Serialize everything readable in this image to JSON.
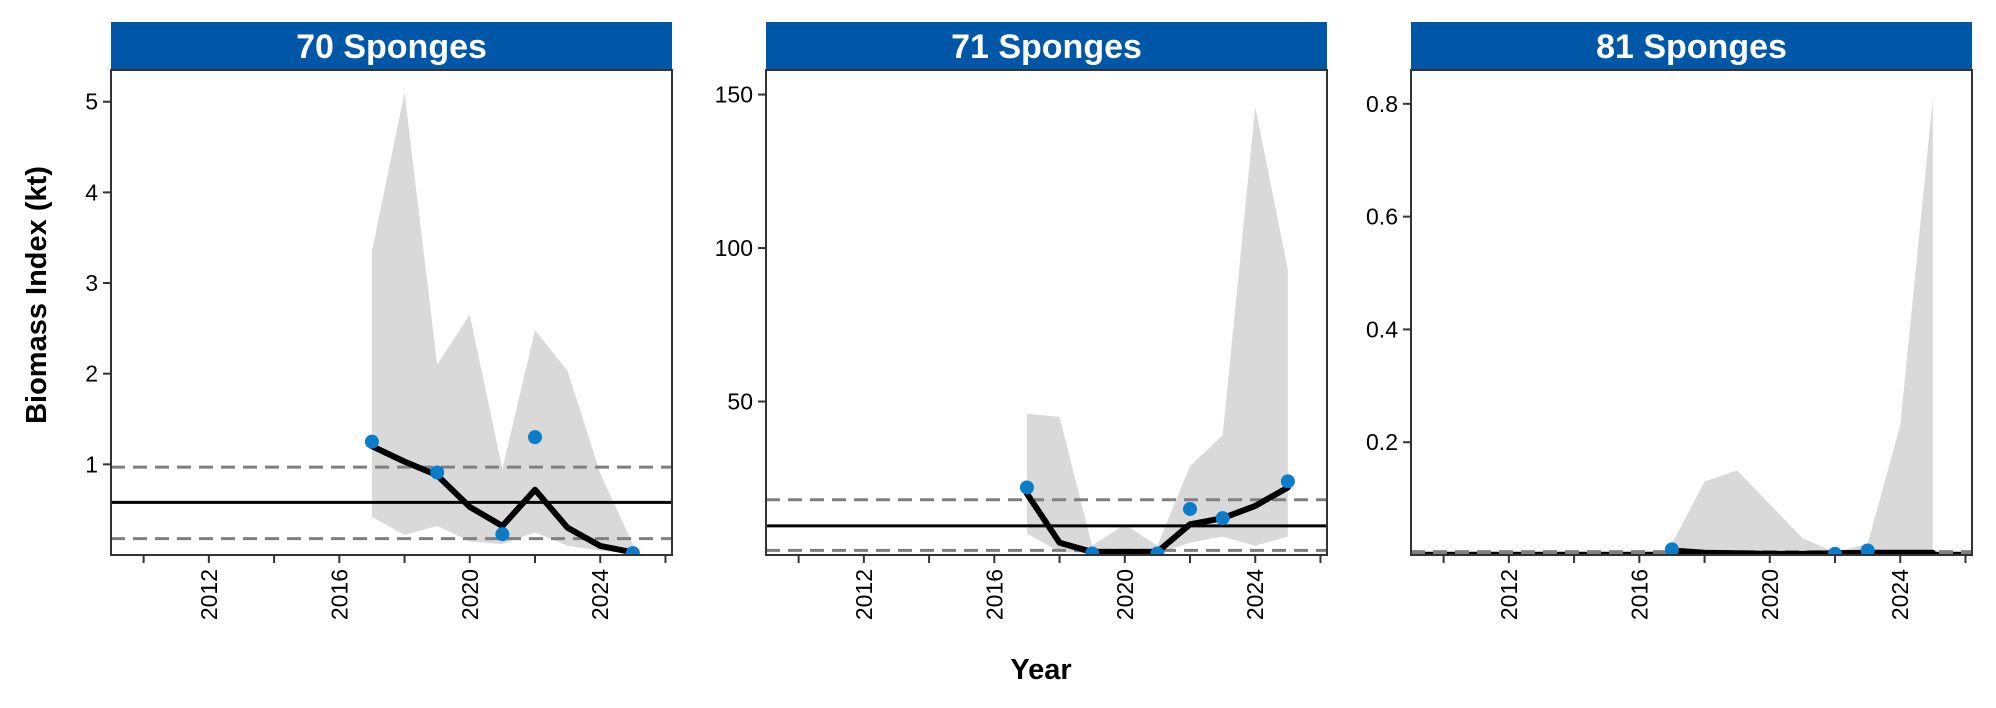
{
  "colors": {
    "strip": "#0057A8",
    "strip_text": "#FFFFFF",
    "ribbon": "#D9D9D9",
    "points": "#0A7CC9",
    "line": "#000000",
    "reference_solid": "#000000",
    "reference_dashed": "#808080"
  },
  "axes": {
    "xlabel": "Year",
    "ylabel": "Biomass Index (kt)"
  },
  "chart_data": [
    {
      "type": "line",
      "title": "70 Sponges",
      "xlim": [
        2009.0,
        2026.2
      ],
      "ylim": [
        0.0,
        5.35
      ],
      "x_ticks": [
        2012,
        2016,
        2020,
        2024
      ],
      "x_minor_ticks": [
        2010,
        2014,
        2018,
        2022,
        2026
      ],
      "y_ticks": [
        1,
        2,
        3,
        4,
        5
      ],
      "ribbon": {
        "x": [
          2017,
          2018,
          2019,
          2020,
          2021,
          2022,
          2023,
          2024,
          2025
        ],
        "upper": [
          3.35,
          5.1,
          2.1,
          2.65,
          0.95,
          2.48,
          2.03,
          0.9,
          0.12
        ],
        "lower": [
          0.42,
          0.22,
          0.32,
          0.15,
          0.12,
          0.25,
          0.1,
          0.05,
          0.01
        ]
      },
      "series": [
        {
          "x": [
            2017,
            2018,
            2019,
            2020,
            2021,
            2022,
            2023,
            2024,
            2025
          ],
          "y": [
            1.2,
            1.03,
            0.88,
            0.53,
            0.32,
            0.72,
            0.3,
            0.1,
            0.03
          ]
        }
      ],
      "points": {
        "x": [
          2017,
          2019,
          2021,
          2022,
          2025
        ],
        "y": [
          1.25,
          0.91,
          0.23,
          1.3,
          0.02
        ]
      },
      "reference_lines": {
        "solid": 0.58,
        "dashed": [
          0.97,
          0.18
        ]
      }
    },
    {
      "type": "line",
      "title": "71 Sponges",
      "xlim": [
        2009.0,
        2026.2
      ],
      "ylim": [
        0.0,
        158.0
      ],
      "x_ticks": [
        2012,
        2016,
        2020,
        2024
      ],
      "x_minor_ticks": [
        2010,
        2014,
        2018,
        2022,
        2026
      ],
      "y_ticks": [
        50,
        100,
        150
      ],
      "ribbon": {
        "x": [
          2017,
          2018,
          2019,
          2020,
          2021,
          2022,
          2023,
          2024,
          2025
        ],
        "upper": [
          46,
          45,
          3,
          10,
          3,
          29,
          39,
          146,
          93
        ],
        "lower": [
          7,
          1,
          0.5,
          0.5,
          0.5,
          4,
          6,
          3,
          6
        ]
      },
      "series": [
        {
          "x": [
            2017,
            2018,
            2019,
            2020,
            2021,
            2022,
            2023,
            2024,
            2025
          ],
          "y": [
            20,
            4,
            1,
            1,
            1,
            10,
            12,
            16,
            22
          ]
        }
      ],
      "points": {
        "x": [
          2017,
          2019,
          2021,
          2022,
          2023,
          2025
        ],
        "y": [
          22,
          0.5,
          0.5,
          15,
          12,
          24
        ]
      },
      "reference_lines": {
        "solid": 9.5,
        "dashed": [
          18,
          1.5
        ]
      }
    },
    {
      "type": "line",
      "title": "81 Sponges",
      "xlim": [
        2009.0,
        2026.2
      ],
      "ylim": [
        0.0,
        0.86
      ],
      "x_ticks": [
        2012,
        2016,
        2020,
        2024
      ],
      "x_minor_ticks": [
        2010,
        2014,
        2018,
        2022,
        2026
      ],
      "y_ticks": [
        0.2,
        0.4,
        0.6,
        0.8
      ],
      "ribbon": {
        "x": [
          2017,
          2018,
          2019,
          2020,
          2021,
          2022,
          2023,
          2024,
          2025
        ],
        "upper": [
          0.02,
          0.13,
          0.15,
          0.09,
          0.03,
          0.005,
          0.02,
          0.23,
          0.81
        ],
        "lower": [
          0,
          0,
          0,
          0,
          0,
          0,
          0,
          0,
          0
        ]
      },
      "series": [
        {
          "x": [
            2017,
            2018,
            2019,
            2020,
            2021,
            2022,
            2023,
            2024,
            2025
          ],
          "y": [
            0.008,
            0.004,
            0.003,
            0.002,
            0.002,
            0.003,
            0.004,
            0.004,
            0.004
          ]
        }
      ],
      "points": {
        "x": [
          2017,
          2022,
          2023
        ],
        "y": [
          0.01,
          0.002,
          0.008
        ]
      },
      "reference_lines": {
        "solid": 0.003,
        "dashed": [
          0.006,
          0.001
        ]
      }
    }
  ]
}
